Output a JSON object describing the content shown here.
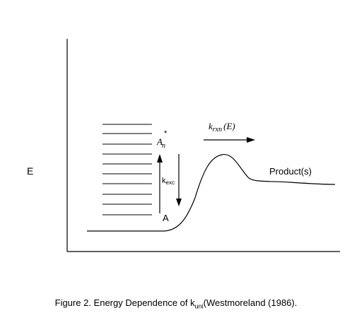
{
  "diagram": {
    "axis_label_e": "E",
    "state_label": "A",
    "excited_label_main": "A",
    "excited_label_sub": "n",
    "excited_label_sup": "*",
    "kexc_main": "k",
    "kexc_sub": "exc",
    "krxn_k": "k",
    "krxn_sub": "rxn",
    "krxn_arg": "(E)",
    "product_label": "Product(s)"
  },
  "caption": {
    "prefix": "Figure 2. Energy Dependence of k",
    "sub": "uni",
    "suffix": "(Westmoreland (1986)."
  }
}
